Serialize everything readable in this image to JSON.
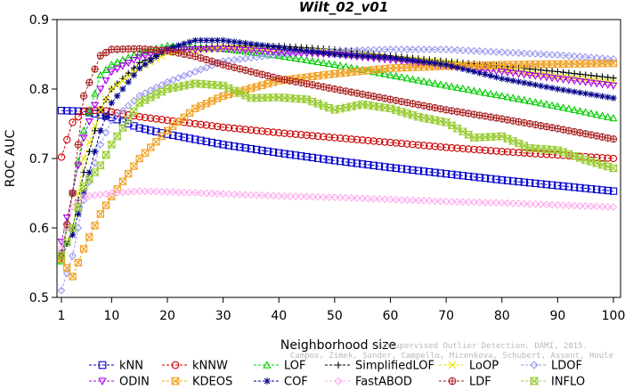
{
  "chart_data": {
    "type": "line",
    "title": "Wilt_02_v01",
    "xlabel": "Neighborhood size",
    "ylabel": "ROC AUC",
    "xlim": [
      1,
      100
    ],
    "ylim": [
      0.5,
      0.9
    ],
    "x_ticks": [
      1,
      10,
      20,
      30,
      40,
      50,
      60,
      70,
      80,
      90,
      100
    ],
    "y_ticks": [
      0.5,
      0.6,
      0.7,
      0.8,
      0.9
    ],
    "grid": false,
    "legend_position": "bottom",
    "watermark": [
      "Unsupervised Outlier Detection. DAMI, 2015.",
      "Campos, Zimek, Sander, Campello, Micenkova, Schubert, Assent, Houle"
    ],
    "series": [
      {
        "name": "kNN",
        "color": "#0000cc",
        "marker": "square",
        "points": [
          [
            1,
            0.769
          ],
          [
            5,
            0.768
          ],
          [
            10,
            0.759
          ],
          [
            15,
            0.744
          ],
          [
            20,
            0.735
          ],
          [
            30,
            0.72
          ],
          [
            40,
            0.708
          ],
          [
            50,
            0.697
          ],
          [
            60,
            0.687
          ],
          [
            70,
            0.678
          ],
          [
            80,
            0.669
          ],
          [
            90,
            0.661
          ],
          [
            100,
            0.653
          ]
        ]
      },
      {
        "name": "kNNW",
        "color": "#cc0000",
        "marker": "circle",
        "points": [
          [
            1,
            0.702
          ],
          [
            3,
            0.752
          ],
          [
            5,
            0.768
          ],
          [
            8,
            0.77
          ],
          [
            10,
            0.767
          ],
          [
            15,
            0.76
          ],
          [
            20,
            0.755
          ],
          [
            30,
            0.745
          ],
          [
            40,
            0.737
          ],
          [
            50,
            0.73
          ],
          [
            60,
            0.723
          ],
          [
            70,
            0.716
          ],
          [
            80,
            0.71
          ],
          [
            90,
            0.705
          ],
          [
            100,
            0.7
          ]
        ]
      },
      {
        "name": "LOF",
        "color": "#00cc00",
        "marker": "triangle-up",
        "points": [
          [
            1,
            0.552
          ],
          [
            3,
            0.65
          ],
          [
            5,
            0.74
          ],
          [
            8,
            0.82
          ],
          [
            10,
            0.835
          ],
          [
            15,
            0.852
          ],
          [
            20,
            0.862
          ],
          [
            25,
            0.86
          ],
          [
            30,
            0.858
          ],
          [
            40,
            0.848
          ],
          [
            50,
            0.835
          ],
          [
            60,
            0.82
          ],
          [
            70,
            0.805
          ],
          [
            80,
            0.79
          ],
          [
            90,
            0.775
          ],
          [
            100,
            0.758
          ]
        ]
      },
      {
        "name": "SimplifiedLOF",
        "color": "#000000",
        "marker": "plus",
        "points": [
          [
            1,
            0.555
          ],
          [
            3,
            0.6
          ],
          [
            5,
            0.68
          ],
          [
            8,
            0.77
          ],
          [
            10,
            0.8
          ],
          [
            15,
            0.838
          ],
          [
            20,
            0.855
          ],
          [
            25,
            0.858
          ],
          [
            30,
            0.862
          ],
          [
            40,
            0.862
          ],
          [
            50,
            0.857
          ],
          [
            60,
            0.848
          ],
          [
            70,
            0.84
          ],
          [
            80,
            0.833
          ],
          [
            90,
            0.825
          ],
          [
            100,
            0.816
          ]
        ]
      },
      {
        "name": "LoOP",
        "color": "#e6e600",
        "marker": "x",
        "points": [
          [
            1,
            0.56
          ],
          [
            3,
            0.6
          ],
          [
            5,
            0.7
          ],
          [
            8,
            0.77
          ],
          [
            10,
            0.8
          ],
          [
            15,
            0.83
          ],
          [
            20,
            0.852
          ],
          [
            30,
            0.86
          ],
          [
            40,
            0.857
          ],
          [
            50,
            0.853
          ],
          [
            60,
            0.845
          ],
          [
            70,
            0.838
          ],
          [
            80,
            0.828
          ],
          [
            90,
            0.818
          ],
          [
            100,
            0.81
          ]
        ]
      },
      {
        "name": "LDOF",
        "color": "#9999ee",
        "marker": "diamond",
        "points": [
          [
            1,
            0.51
          ],
          [
            3,
            0.56
          ],
          [
            5,
            0.64
          ],
          [
            8,
            0.72
          ],
          [
            10,
            0.755
          ],
          [
            15,
            0.79
          ],
          [
            20,
            0.81
          ],
          [
            25,
            0.825
          ],
          [
            30,
            0.84
          ],
          [
            40,
            0.85
          ],
          [
            50,
            0.855
          ],
          [
            60,
            0.857
          ],
          [
            70,
            0.857
          ],
          [
            80,
            0.853
          ],
          [
            90,
            0.849
          ],
          [
            100,
            0.843
          ]
        ]
      },
      {
        "name": "ODIN",
        "color": "#aa00ee",
        "marker": "triangle-down",
        "points": [
          [
            1,
            0.58
          ],
          [
            3,
            0.65
          ],
          [
            5,
            0.73
          ],
          [
            8,
            0.8
          ],
          [
            10,
            0.825
          ],
          [
            15,
            0.846
          ],
          [
            20,
            0.856
          ],
          [
            30,
            0.858
          ],
          [
            40,
            0.853
          ],
          [
            50,
            0.85
          ],
          [
            60,
            0.842
          ],
          [
            70,
            0.833
          ],
          [
            80,
            0.825
          ],
          [
            90,
            0.815
          ],
          [
            100,
            0.805
          ]
        ]
      },
      {
        "name": "KDEOS",
        "color": "#f0a020",
        "marker": "square-x",
        "points": [
          [
            1,
            0.555
          ],
          [
            3,
            0.53
          ],
          [
            5,
            0.57
          ],
          [
            8,
            0.62
          ],
          [
            10,
            0.645
          ],
          [
            15,
            0.7
          ],
          [
            20,
            0.74
          ],
          [
            25,
            0.772
          ],
          [
            30,
            0.79
          ],
          [
            40,
            0.812
          ],
          [
            50,
            0.822
          ],
          [
            60,
            0.83
          ],
          [
            70,
            0.833
          ],
          [
            80,
            0.835
          ],
          [
            90,
            0.836
          ],
          [
            100,
            0.837
          ]
        ]
      },
      {
        "name": "COF",
        "color": "#000088",
        "marker": "star",
        "points": [
          [
            1,
            0.565
          ],
          [
            3,
            0.59
          ],
          [
            5,
            0.65
          ],
          [
            8,
            0.74
          ],
          [
            10,
            0.78
          ],
          [
            15,
            0.83
          ],
          [
            20,
            0.858
          ],
          [
            25,
            0.87
          ],
          [
            30,
            0.87
          ],
          [
            40,
            0.86
          ],
          [
            50,
            0.85
          ],
          [
            60,
            0.845
          ],
          [
            70,
            0.835
          ],
          [
            80,
            0.815
          ],
          [
            90,
            0.8
          ],
          [
            100,
            0.787
          ]
        ]
      },
      {
        "name": "FastABOD",
        "color": "#ffaaee",
        "marker": "diamond",
        "points": [
          [
            1,
            0.57
          ],
          [
            3,
            0.63
          ],
          [
            5,
            0.645
          ],
          [
            10,
            0.65
          ],
          [
            15,
            0.653
          ],
          [
            20,
            0.652
          ],
          [
            30,
            0.649
          ],
          [
            40,
            0.646
          ],
          [
            50,
            0.644
          ],
          [
            60,
            0.641
          ],
          [
            70,
            0.638
          ],
          [
            80,
            0.636
          ],
          [
            90,
            0.633
          ],
          [
            100,
            0.63
          ]
        ]
      },
      {
        "name": "LDF",
        "color": "#aa2222",
        "marker": "circle-plus",
        "points": [
          [
            1,
            0.56
          ],
          [
            3,
            0.65
          ],
          [
            5,
            0.79
          ],
          [
            8,
            0.848
          ],
          [
            10,
            0.857
          ],
          [
            15,
            0.858
          ],
          [
            20,
            0.855
          ],
          [
            25,
            0.847
          ],
          [
            30,
            0.835
          ],
          [
            40,
            0.815
          ],
          [
            50,
            0.8
          ],
          [
            60,
            0.785
          ],
          [
            70,
            0.77
          ],
          [
            80,
            0.757
          ],
          [
            90,
            0.743
          ],
          [
            100,
            0.728
          ]
        ]
      },
      {
        "name": "INFLO",
        "color": "#99cc33",
        "marker": "hourglass",
        "points": [
          [
            1,
            0.56
          ],
          [
            3,
            0.6
          ],
          [
            5,
            0.66
          ],
          [
            8,
            0.69
          ],
          [
            10,
            0.72
          ],
          [
            15,
            0.78
          ],
          [
            20,
            0.8
          ],
          [
            25,
            0.808
          ],
          [
            30,
            0.805
          ],
          [
            35,
            0.787
          ],
          [
            40,
            0.788
          ],
          [
            45,
            0.785
          ],
          [
            50,
            0.77
          ],
          [
            55,
            0.778
          ],
          [
            60,
            0.772
          ],
          [
            65,
            0.76
          ],
          [
            70,
            0.752
          ],
          [
            75,
            0.73
          ],
          [
            80,
            0.732
          ],
          [
            85,
            0.715
          ],
          [
            90,
            0.712
          ],
          [
            95,
            0.698
          ],
          [
            100,
            0.686
          ]
        ]
      }
    ]
  }
}
